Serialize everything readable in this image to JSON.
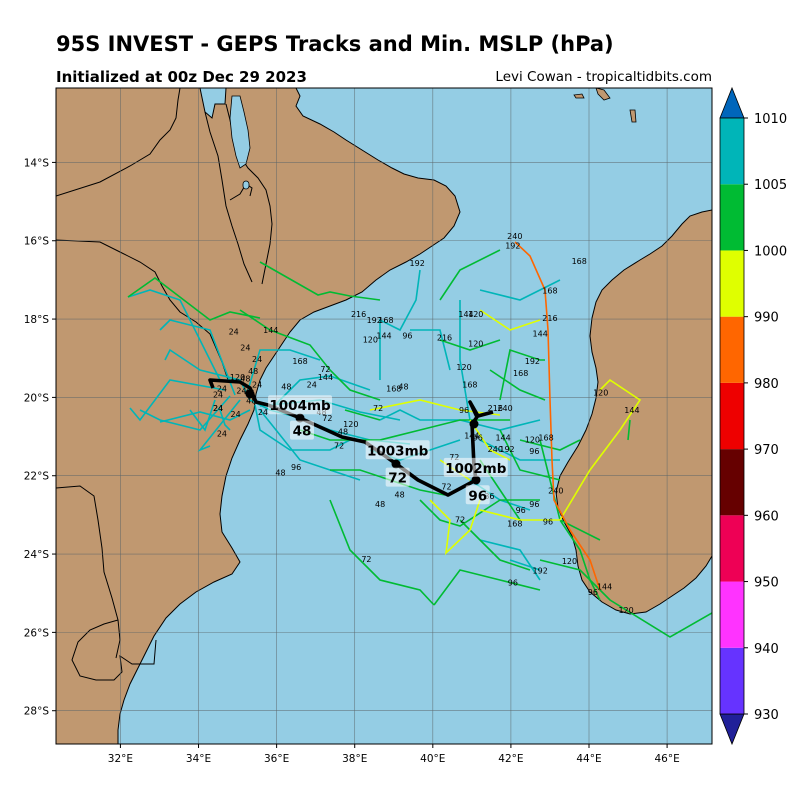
{
  "header": {
    "title": "95S INVEST - GEPS Tracks and Min. MSLP (hPa)",
    "init": "Initialized at 00z Dec 29 2023",
    "credit": "Levi Cowan - tropicaltidbits.com"
  },
  "map": {
    "lon_range": [
      30.35,
      47.15
    ],
    "lat_range": [
      -28.85,
      -12.1
    ],
    "lon_ticks": [
      "32°E",
      "34°E",
      "36°E",
      "38°E",
      "40°E",
      "42°E",
      "44°E",
      "46°E"
    ],
    "lat_ticks": [
      "14°S",
      "16°S",
      "18°S",
      "20°S",
      "22°S",
      "24°S",
      "26°S",
      "28°S"
    ],
    "colors": {
      "ocean": "#94cde4",
      "land": "#c09870",
      "grid": "#5a6468",
      "mean_track": "#000000"
    }
  },
  "mean_track": {
    "labels": [
      {
        "text": "1004mb",
        "lon": 36.6,
        "lat": -20.2
      },
      {
        "text": "1003mb",
        "lon": 39.1,
        "lat": -21.35
      },
      {
        "text": "1002mb",
        "lon": 41.1,
        "lat": -21.8
      }
    ],
    "hour_labels": [
      {
        "text": "48",
        "lon": 36.65,
        "lat": -20.85
      },
      {
        "text": "72",
        "lon": 39.1,
        "lat": -22.05
      },
      {
        "text": "96",
        "lon": 41.15,
        "lat": -22.5
      }
    ]
  },
  "colorbar": {
    "levels": [
      "930",
      "940",
      "950",
      "960",
      "970",
      "980",
      "990",
      "1000",
      "1005",
      "1010"
    ],
    "colors": [
      "#6633ff",
      "#ff33ff",
      "#ee0055",
      "#660000",
      "#ee0000",
      "#ff6600",
      "#dfff00",
      "#00bb33",
      "#00b5b8"
    ],
    "under_color": "#202099",
    "over_color": "#0066bb"
  },
  "track_hour_labels": [
    {
      "text": "120",
      "lon": 35.0,
      "lat": -19.55
    },
    {
      "text": "48",
      "lon": 35.2,
      "lat": -19.6
    },
    {
      "text": "24",
      "lon": 34.6,
      "lat": -19.85
    },
    {
      "text": "24",
      "lon": 35.1,
      "lat": -19.9
    },
    {
      "text": "48",
      "lon": 35.3,
      "lat": -19.95
    },
    {
      "text": "24",
      "lon": 34.5,
      "lat": -20.0
    },
    {
      "text": "48",
      "lon": 35.35,
      "lat": -20.15
    },
    {
      "text": "24",
      "lon": 34.5,
      "lat": -20.35
    },
    {
      "text": "24",
      "lon": 34.95,
      "lat": -20.5
    },
    {
      "text": "24",
      "lon": 35.65,
      "lat": -20.45
    },
    {
      "text": "48",
      "lon": 36.25,
      "lat": -19.8
    },
    {
      "text": "24",
      "lon": 34.6,
      "lat": -21.0
    },
    {
      "text": "24",
      "lon": 35.2,
      "lat": -18.8
    },
    {
      "text": "24",
      "lon": 35.5,
      "lat": -19.1
    },
    {
      "text": "48",
      "lon": 35.4,
      "lat": -19.4
    },
    {
      "text": "24",
      "lon": 35.5,
      "lat": -19.75
    },
    {
      "text": "144",
      "lon": 35.85,
      "lat": -18.35
    },
    {
      "text": "168",
      "lon": 36.6,
      "lat": -19.15
    },
    {
      "text": "72",
      "lon": 37.25,
      "lat": -19.35
    },
    {
      "text": "144",
      "lon": 37.25,
      "lat": -19.55
    },
    {
      "text": "24",
      "lon": 36.9,
      "lat": -19.75
    },
    {
      "text": "48",
      "lon": 37.15,
      "lat": -20.45
    },
    {
      "text": "72",
      "lon": 37.3,
      "lat": -20.6
    },
    {
      "text": "48",
      "lon": 37.7,
      "lat": -20.95
    },
    {
      "text": "120",
      "lon": 37.9,
      "lat": -20.75
    },
    {
      "text": "72",
      "lon": 37.6,
      "lat": -21.3
    },
    {
      "text": "96",
      "lon": 36.5,
      "lat": -21.85
    },
    {
      "text": "48",
      "lon": 36.1,
      "lat": -22.0
    },
    {
      "text": "72",
      "lon": 38.6,
      "lat": -20.35
    },
    {
      "text": "168",
      "lon": 39.0,
      "lat": -19.85
    },
    {
      "text": "48",
      "lon": 39.25,
      "lat": -19.8
    },
    {
      "text": "216",
      "lon": 38.1,
      "lat": -17.95
    },
    {
      "text": "192",
      "lon": 39.6,
      "lat": -16.65
    },
    {
      "text": "192",
      "lon": 38.5,
      "lat": -18.1
    },
    {
      "text": "168",
      "lon": 38.8,
      "lat": -18.1
    },
    {
      "text": "144",
      "lon": 38.75,
      "lat": -18.5
    },
    {
      "text": "120",
      "lon": 38.4,
      "lat": -18.6
    },
    {
      "text": "96",
      "lon": 39.35,
      "lat": -18.5
    },
    {
      "text": "216",
      "lon": 40.3,
      "lat": -18.55
    },
    {
      "text": "144",
      "lon": 40.85,
      "lat": -17.95
    },
    {
      "text": "120",
      "lon": 41.1,
      "lat": -17.95
    },
    {
      "text": "120",
      "lon": 41.1,
      "lat": -18.7
    },
    {
      "text": "120",
      "lon": 40.8,
      "lat": -19.3
    },
    {
      "text": "168",
      "lon": 40.95,
      "lat": -19.75
    },
    {
      "text": "96",
      "lon": 40.8,
      "lat": -20.4
    },
    {
      "text": "216",
      "lon": 41.6,
      "lat": -20.35
    },
    {
      "text": "240",
      "lon": 41.85,
      "lat": -20.35
    },
    {
      "text": "144",
      "lon": 41.0,
      "lat": -21.05
    },
    {
      "text": "96",
      "lon": 41.15,
      "lat": -21.1
    },
    {
      "text": "144",
      "lon": 41.8,
      "lat": -21.1
    },
    {
      "text": "240",
      "lon": 41.6,
      "lat": -21.4
    },
    {
      "text": "192",
      "lon": 41.9,
      "lat": -21.4
    },
    {
      "text": "120",
      "lon": 42.55,
      "lat": -21.15
    },
    {
      "text": "168",
      "lon": 42.9,
      "lat": -21.1
    },
    {
      "text": "96",
      "lon": 42.6,
      "lat": -21.45
    },
    {
      "text": "240",
      "lon": 42.1,
      "lat": -15.95
    },
    {
      "text": "192",
      "lon": 42.05,
      "lat": -16.2
    },
    {
      "text": "168",
      "lon": 43.75,
      "lat": -16.6
    },
    {
      "text": "168",
      "lon": 43.0,
      "lat": -17.35
    },
    {
      "text": "216",
      "lon": 43.0,
      "lat": -18.05
    },
    {
      "text": "144",
      "lon": 42.75,
      "lat": -18.45
    },
    {
      "text": "192",
      "lon": 42.55,
      "lat": -19.15
    },
    {
      "text": "168",
      "lon": 42.25,
      "lat": -19.45
    },
    {
      "text": "120",
      "lon": 44.3,
      "lat": -19.95
    },
    {
      "text": "144",
      "lon": 45.1,
      "lat": -20.4
    },
    {
      "text": "240",
      "lon": 43.15,
      "lat": -22.45
    },
    {
      "text": "96",
      "lon": 42.6,
      "lat": -22.8
    },
    {
      "text": "96",
      "lon": 42.25,
      "lat": -22.95
    },
    {
      "text": "96",
      "lon": 42.95,
      "lat": -23.25
    },
    {
      "text": "168",
      "lon": 42.1,
      "lat": -23.3
    },
    {
      "text": "72",
      "lon": 40.7,
      "lat": -23.2
    },
    {
      "text": "72",
      "lon": 40.35,
      "lat": -22.35
    },
    {
      "text": "72",
      "lon": 40.55,
      "lat": -21.6
    },
    {
      "text": "36",
      "lon": 41.45,
      "lat": -22.6
    },
    {
      "text": "120",
      "lon": 43.5,
      "lat": -24.25
    },
    {
      "text": "192",
      "lon": 42.75,
      "lat": -24.5
    },
    {
      "text": "96",
      "lon": 42.05,
      "lat": -24.8
    },
    {
      "text": "144",
      "lon": 44.4,
      "lat": -24.9
    },
    {
      "text": "96",
      "lon": 44.1,
      "lat": -25.05
    },
    {
      "text": "120",
      "lon": 44.95,
      "lat": -25.5
    },
    {
      "text": "72",
      "lon": 38.3,
      "lat": -24.2
    },
    {
      "text": "48",
      "lon": 38.65,
      "lat": -22.8
    },
    {
      "text": "48",
      "lon": 39.15,
      "lat": -22.55
    },
    {
      "text": "24",
      "lon": 34.9,
      "lat": -18.4
    },
    {
      "text": "24",
      "lon": 34.5,
      "lat": -20.35
    }
  ]
}
